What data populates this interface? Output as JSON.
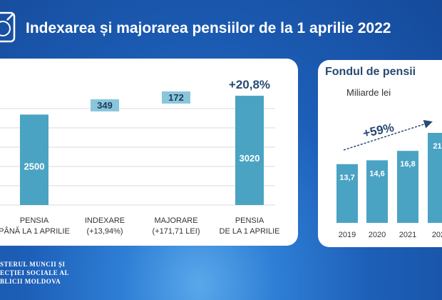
{
  "header": {
    "title": "Indexarea și majorarea pensiilor de la 1 aprilie 2022"
  },
  "footer": {
    "lines": [
      "STERUL MUNCII ȘI",
      "ECȚIEI SOCIALE AL",
      "BLICII MOLDOVA"
    ]
  },
  "colors": {
    "bar": "#4aa3c3",
    "bar_light": "#8ac6db",
    "text_dark": "#274a72",
    "grid": "#d9d9d9"
  },
  "chart_data": [
    {
      "type": "bar",
      "categories": [
        [
          "PENSIA",
          "PÂNĂ LA 1 APRILIE"
        ],
        [
          "INDEXARE",
          "(+13,94%)"
        ],
        [
          "MAJORARE",
          "(+171,71 LEI)"
        ],
        [
          "PENSIA",
          "DE LA 1 APRILIE"
        ]
      ],
      "values": [
        2500,
        349,
        172,
        3020
      ],
      "labels": [
        "2500",
        "349",
        "172",
        "3020"
      ],
      "annotation": "+20,8%",
      "ylim": [
        0,
        3100
      ]
    },
    {
      "type": "bar",
      "title": "Fondul de pensii",
      "subtitle": "Miliarde lei",
      "categories": [
        "2019",
        "2020",
        "2021",
        "202"
      ],
      "values": [
        13.7,
        14.6,
        16.8,
        21
      ],
      "labels": [
        "13,7",
        "14,6",
        "16,8",
        "21,"
      ],
      "annotation": "+59%",
      "ylim": [
        0,
        23
      ]
    }
  ]
}
